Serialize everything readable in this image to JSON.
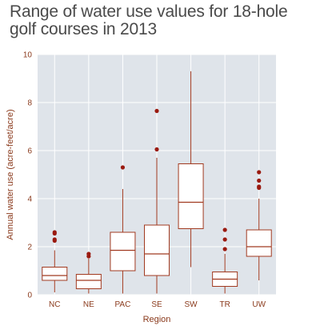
{
  "chart_data": {
    "type": "box",
    "title": "Range of water use values for 18-hole golf courses in 2013",
    "xlabel": "Region",
    "ylabel": "Annual water use (acre-feet/acre)",
    "ylim": [
      0,
      10
    ],
    "yticks": [
      "0",
      "2",
      "4",
      "6",
      "8",
      "10"
    ],
    "grid": true,
    "categories": [
      "NC",
      "NE",
      "PAC",
      "SE",
      "SW",
      "TR",
      "UW"
    ],
    "boxes": [
      {
        "category": "NC",
        "whisker_low": 0.1,
        "q1": 0.6,
        "median": 0.8,
        "q3": 1.15,
        "whisker_high": 1.85,
        "outliers": [
          2.25,
          2.3,
          2.55,
          2.6
        ]
      },
      {
        "category": "NE",
        "whisker_low": 0.05,
        "q1": 0.25,
        "median": 0.6,
        "q3": 0.85,
        "whisker_high": 1.5,
        "outliers": [
          1.6,
          1.7
        ]
      },
      {
        "category": "PAC",
        "whisker_low": 0.05,
        "q1": 1.0,
        "median": 1.85,
        "q3": 2.6,
        "whisker_high": 4.4,
        "outliers": [
          5.3
        ]
      },
      {
        "category": "SE",
        "whisker_low": 0.05,
        "q1": 0.8,
        "median": 1.7,
        "q3": 2.9,
        "whisker_high": 5.7,
        "outliers": [
          6.05,
          7.65
        ]
      },
      {
        "category": "SW",
        "whisker_low": 1.15,
        "q1": 2.75,
        "median": 3.85,
        "q3": 5.45,
        "whisker_high": 9.3,
        "outliers": []
      },
      {
        "category": "TR",
        "whisker_low": 0.05,
        "q1": 0.35,
        "median": 0.65,
        "q3": 0.95,
        "whisker_high": 1.7,
        "outliers": [
          1.9,
          2.3,
          2.7
        ]
      },
      {
        "category": "UW",
        "whisker_low": 0.6,
        "q1": 1.6,
        "median": 2.0,
        "q3": 2.7,
        "whisker_high": 4.0,
        "outliers": [
          4.45,
          4.5,
          4.75,
          5.1
        ]
      }
    ],
    "colors": {
      "background": "#dfe4ea",
      "grid": "#ffffff",
      "box": "#a13a20",
      "outlier": "#9a1a10",
      "text": "#8a3a1c"
    }
  }
}
